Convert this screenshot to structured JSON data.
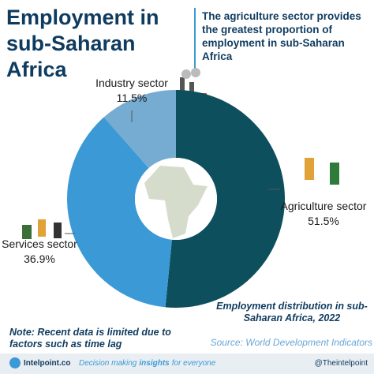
{
  "header": {
    "title": "Employment in sub-Saharan Africa",
    "subtitle": "The agriculture sector provides the greatest proportion of employment in sub-Saharan Africa"
  },
  "chart_data": {
    "type": "donut",
    "categories": [
      "Agriculture sector",
      "Services sector",
      "Industry sector"
    ],
    "values": [
      51.5,
      36.9,
      11.5
    ],
    "value_labels": [
      "51.5%",
      "36.9%",
      "11.5%"
    ],
    "colors": [
      "#0e4f5e",
      "#3b9ad6",
      "#77acd2"
    ],
    "caption": "Employment distribution in sub-Saharan Africa, 2022"
  },
  "note": "Note: Recent data is limited due to factors such as time lag",
  "source": "Source: World Development Indicators",
  "footer": {
    "brand": "Intelpoint.co",
    "tagline": [
      "Decision making",
      "insights",
      "for everyone"
    ],
    "handle": "@Theintelpoint"
  }
}
